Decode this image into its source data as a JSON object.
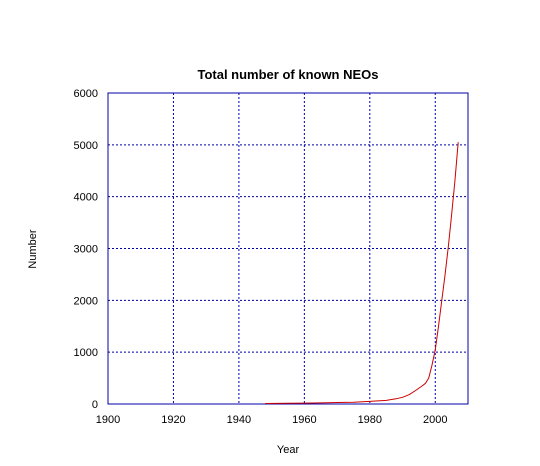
{
  "chart_data": {
    "type": "line",
    "title": "Total number of known NEOs",
    "xlabel": "Year",
    "ylabel": "Number",
    "xlim": [
      1900,
      2010
    ],
    "ylim": [
      0,
      6000
    ],
    "x_ticks": [
      1900,
      1920,
      1940,
      1960,
      1980,
      2000
    ],
    "x_tick_labels": [
      "1900",
      "1920",
      "1940",
      "1960",
      "1980",
      "2000"
    ],
    "y_ticks": [
      0,
      1000,
      2000,
      3000,
      4000,
      5000,
      6000
    ],
    "y_tick_labels": [
      "0",
      "1000",
      "2000",
      "3000",
      "4000",
      "5000",
      "6000"
    ],
    "grid": true,
    "series": [
      {
        "color": "#cc0000",
        "x": [
          1948,
          1955,
          1960,
          1965,
          1970,
          1975,
          1980,
          1985,
          1988,
          1990,
          1992,
          1994,
          1996,
          1997,
          1998,
          1999,
          2000,
          2001,
          2002,
          2003,
          2004,
          2005,
          2006,
          2007
        ],
        "y": [
          10,
          15,
          18,
          22,
          28,
          35,
          50,
          70,
          100,
          130,
          180,
          260,
          350,
          400,
          500,
          750,
          1050,
          1500,
          2000,
          2500,
          3050,
          3650,
          4300,
          5050
        ]
      }
    ],
    "colors": {
      "axes": "#0000aa",
      "grid": "#0000aa",
      "line": "#cc0000"
    }
  }
}
